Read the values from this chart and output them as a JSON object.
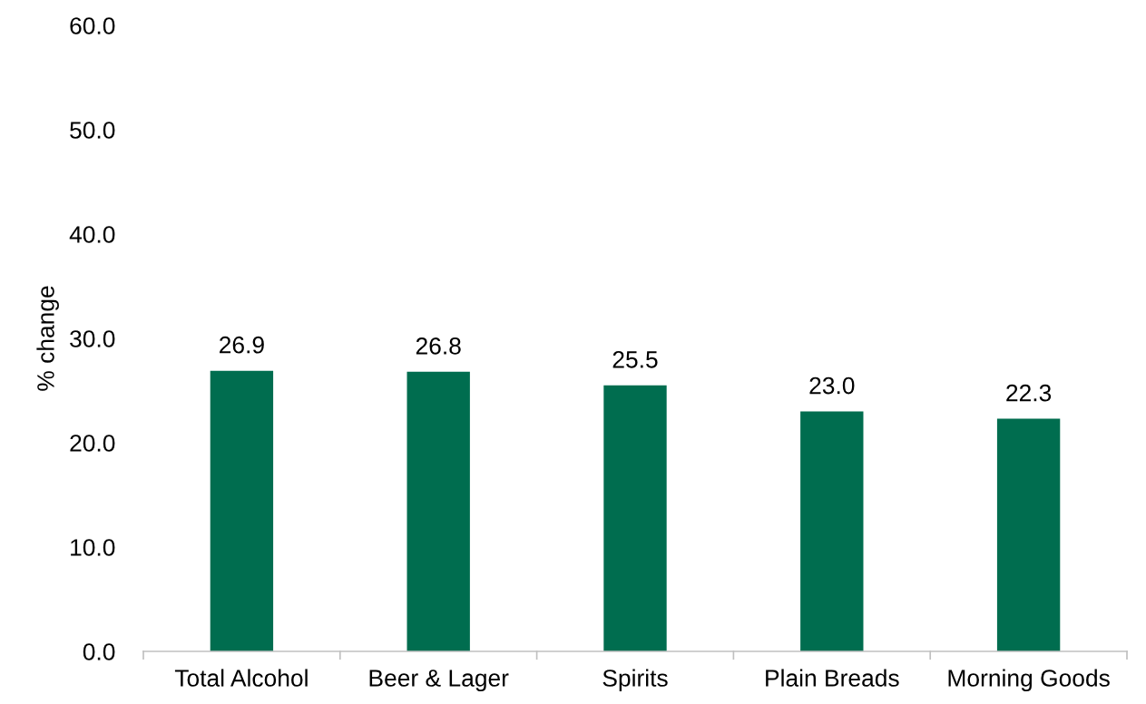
{
  "chart_data": {
    "type": "bar",
    "ylabel": "% change",
    "categories": [
      "Total Alcohol",
      "Beer & Lager",
      "Spirits",
      "Plain Breads",
      "Morning Goods"
    ],
    "values": [
      26.9,
      26.8,
      25.5,
      23.0,
      22.3
    ],
    "color": "#006d4f",
    "ylim": [
      0,
      60
    ],
    "yticks": [
      {
        "value": 0,
        "label": "0.0"
      },
      {
        "value": 10,
        "label": "10.0"
      },
      {
        "value": 20,
        "label": "20.0"
      },
      {
        "value": 30,
        "label": "30.0"
      },
      {
        "value": 40,
        "label": "40.0"
      },
      {
        "value": 50,
        "label": "50.0"
      },
      {
        "value": 60,
        "label": "60.0"
      }
    ],
    "value_labels": [
      "26.9",
      "26.8",
      "25.5",
      "23.0",
      "22.3"
    ],
    "grid": false,
    "legend": false
  }
}
